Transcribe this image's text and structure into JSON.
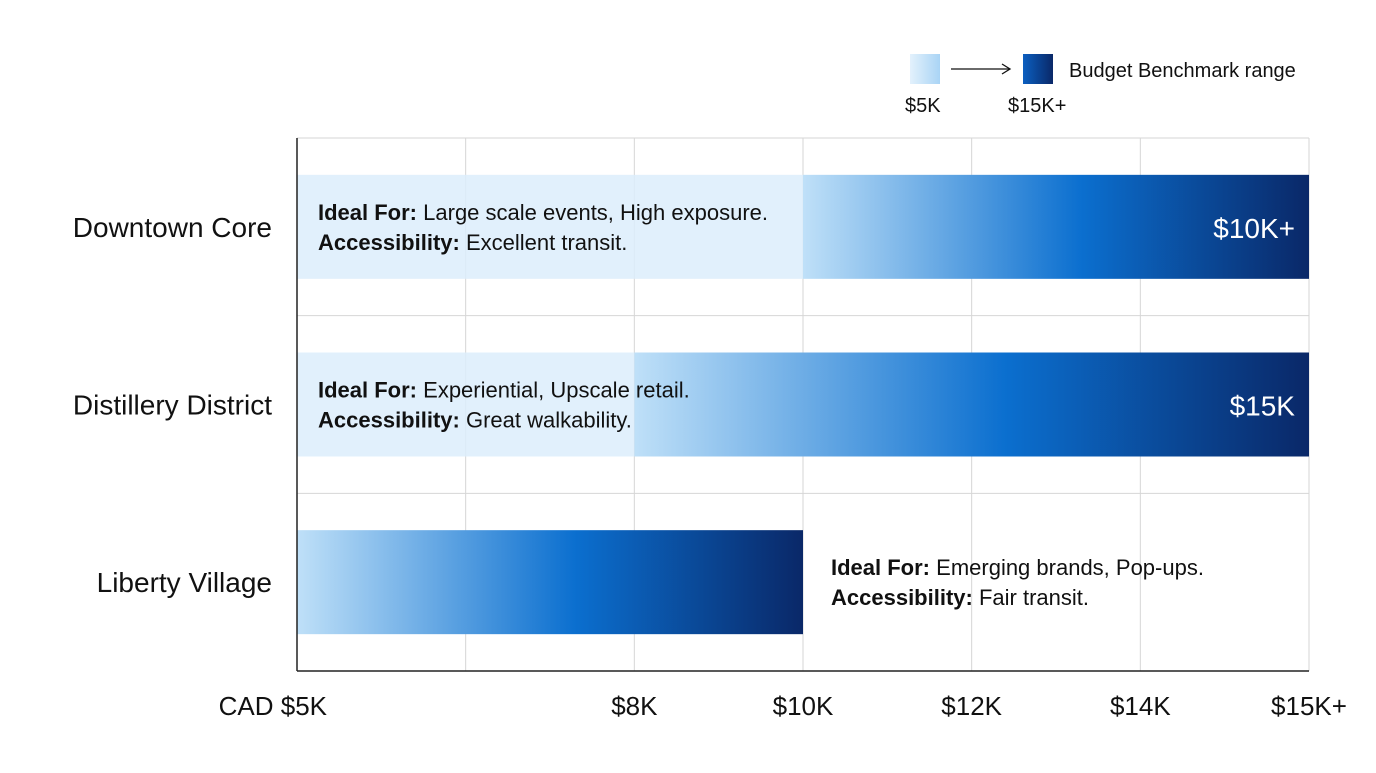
{
  "chart_data": {
    "type": "bar",
    "orientation": "horizontal",
    "title": "",
    "xlabel": "",
    "ylabel": "",
    "grid": true,
    "legend_placement": "top-right",
    "x_ticks": [
      {
        "value": 5,
        "label": "CAD $5K"
      },
      {
        "value": 8,
        "label": "$8K"
      },
      {
        "value": 10,
        "label": "$10K"
      },
      {
        "value": 12,
        "label": "$12K"
      },
      {
        "value": 14,
        "label": "$14K"
      },
      {
        "value": 15,
        "label": "$15K+"
      }
    ],
    "xlim": [
      5,
      15
    ],
    "legend": {
      "low_label": "$5K",
      "high_label": "$15K+",
      "text": "Budget Benchmark range"
    },
    "colors": {
      "light_band": "#dcedfb",
      "gradient_start": "#bfe0f8",
      "gradient_mid": "#0b6fcf",
      "gradient_end": "#0a2868",
      "grid": "#d6d6d6",
      "axis": "#222222"
    },
    "categories": [
      "Downtown Core",
      "Distillery District",
      "Liberty Village"
    ],
    "bars": [
      {
        "category": "Downtown Core",
        "light_start": 5,
        "gradient_start": 10,
        "end": 15,
        "value_label": "$10K+",
        "ideal_for_label": "Ideal For:",
        "ideal_for": "Large scale events, High exposure.",
        "accessibility_label": "Accessibility:",
        "accessibility": "Excellent transit.",
        "note_position": "inside"
      },
      {
        "category": "Distillery District",
        "light_start": 5,
        "gradient_start": 8,
        "end": 15,
        "value_label": "$15K",
        "ideal_for_label": "Ideal For:",
        "ideal_for": "Experiential, Upscale retail.",
        "accessibility_label": "Accessibility:",
        "accessibility": "Great walkability.",
        "note_position": "inside"
      },
      {
        "category": "Liberty Village",
        "light_start": 5,
        "gradient_start": 5,
        "end": 10,
        "value_label": "",
        "ideal_for_label": "Ideal For:",
        "ideal_for": "Emerging brands, Pop-ups.",
        "accessibility_label": "Accessibility:",
        "accessibility": "Fair transit.",
        "note_position": "outside"
      }
    ]
  }
}
